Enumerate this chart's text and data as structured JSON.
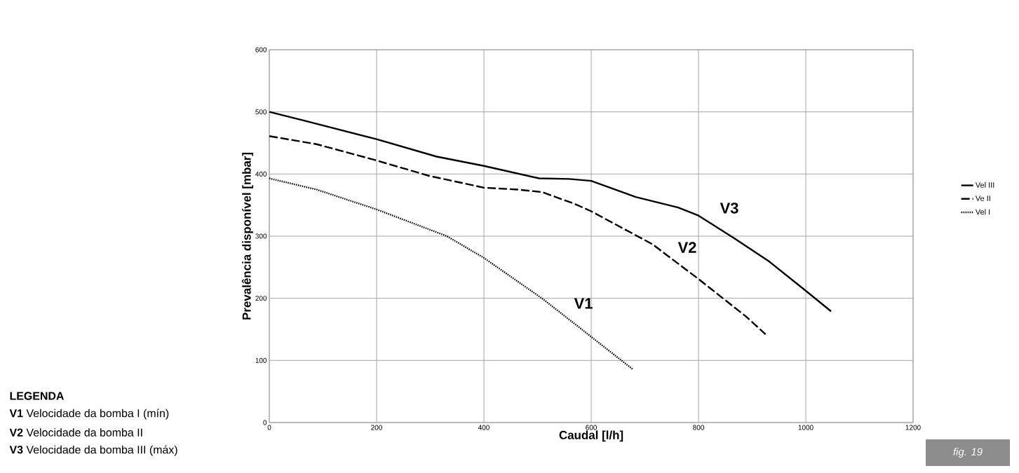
{
  "chart_data": {
    "type": "line",
    "xlabel": "Caudal [l/h]",
    "ylabel": "Prevalência disponível [mbar]",
    "xlim": [
      0,
      1200
    ],
    "ylim": [
      0,
      600
    ],
    "xticks": [
      0,
      200,
      400,
      600,
      800,
      1000,
      1200
    ],
    "yticks": [
      0,
      100,
      200,
      300,
      400,
      500,
      600
    ],
    "grid": true,
    "legend": "right",
    "series": [
      {
        "name": "Vel III",
        "color": "#000000",
        "line_style": "solid",
        "x": [
          0,
          65,
          200,
          312,
          400,
          503,
          559,
          600,
          683,
          762,
          800,
          866,
          932,
          1000,
          1047
        ],
        "values": [
          500,
          486,
          456,
          428,
          413,
          393,
          392,
          389,
          363,
          346,
          333,
          297,
          259,
          212,
          179
        ]
      },
      {
        "name": "Ve II",
        "color": "#000000",
        "line_style": "dashed",
        "x": [
          0,
          88,
          195,
          298,
          400,
          462,
          508,
          569,
          600,
          714,
          800,
          888,
          925
        ],
        "values": [
          461,
          448,
          423,
          397,
          378,
          375,
          371,
          352,
          340,
          287,
          231,
          171,
          142
        ]
      },
      {
        "name": "Vel I",
        "color": "#000000",
        "line_style": "dotted",
        "x": [
          0,
          88,
          200,
          331,
          400,
          508,
          578,
          600,
          677
        ],
        "values": [
          393,
          375,
          343,
          300,
          265,
          200,
          153,
          138,
          86
        ]
      }
    ],
    "annotations": [
      "V3",
      "V2",
      "V1",
      "**LEGENDA**",
      "**V1** Velocidade da bomba I (mín)",
      "**V2** Velocidade da bomba II",
      "**V3** Velocidade da bomba III (máx)",
      "*fig. 19*"
    ]
  }
}
